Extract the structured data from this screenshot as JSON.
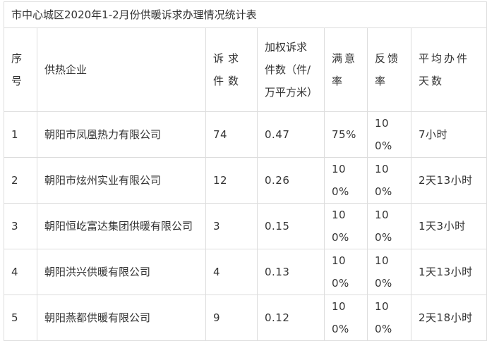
{
  "title": "市中心城区2020年1-2月份供暖诉求办理情况统计表",
  "headers": [
    "序号",
    "供热企业",
    "诉求件数",
    "加权诉求件数（件/万平方米）",
    "满意率",
    "反馈率",
    "平均办件天数"
  ],
  "rows": [
    {
      "no": "1",
      "company": "朝阳市凤凰热力有限公司",
      "count": "74",
      "weighted": "0.47",
      "satisfaction": "75%",
      "feedback": "100%",
      "avg_days": "7小时"
    },
    {
      "no": "2",
      "company": "朝阳市炫州实业有限公司",
      "count": "12",
      "weighted": "0.26",
      "satisfaction": "100%",
      "feedback": "100%",
      "avg_days": "2天13小时"
    },
    {
      "no": "3",
      "company": "朝阳恒屹富达集团供暖有限公司",
      "count": "3",
      "weighted": "0.15",
      "satisfaction": "100%",
      "feedback": "100%",
      "avg_days": "1天3小时"
    },
    {
      "no": "4",
      "company": "朝阳洪兴供暖有限公司",
      "count": "4",
      "weighted": "0.13",
      "satisfaction": "100%",
      "feedback": "100%",
      "avg_days": "1天13小时"
    },
    {
      "no": "5",
      "company": "朝阳燕都供暖有限公司",
      "count": "9",
      "weighted": "0.12",
      "satisfaction": "100%",
      "feedback": "100%",
      "avg_days": "2天18小时"
    }
  ]
}
